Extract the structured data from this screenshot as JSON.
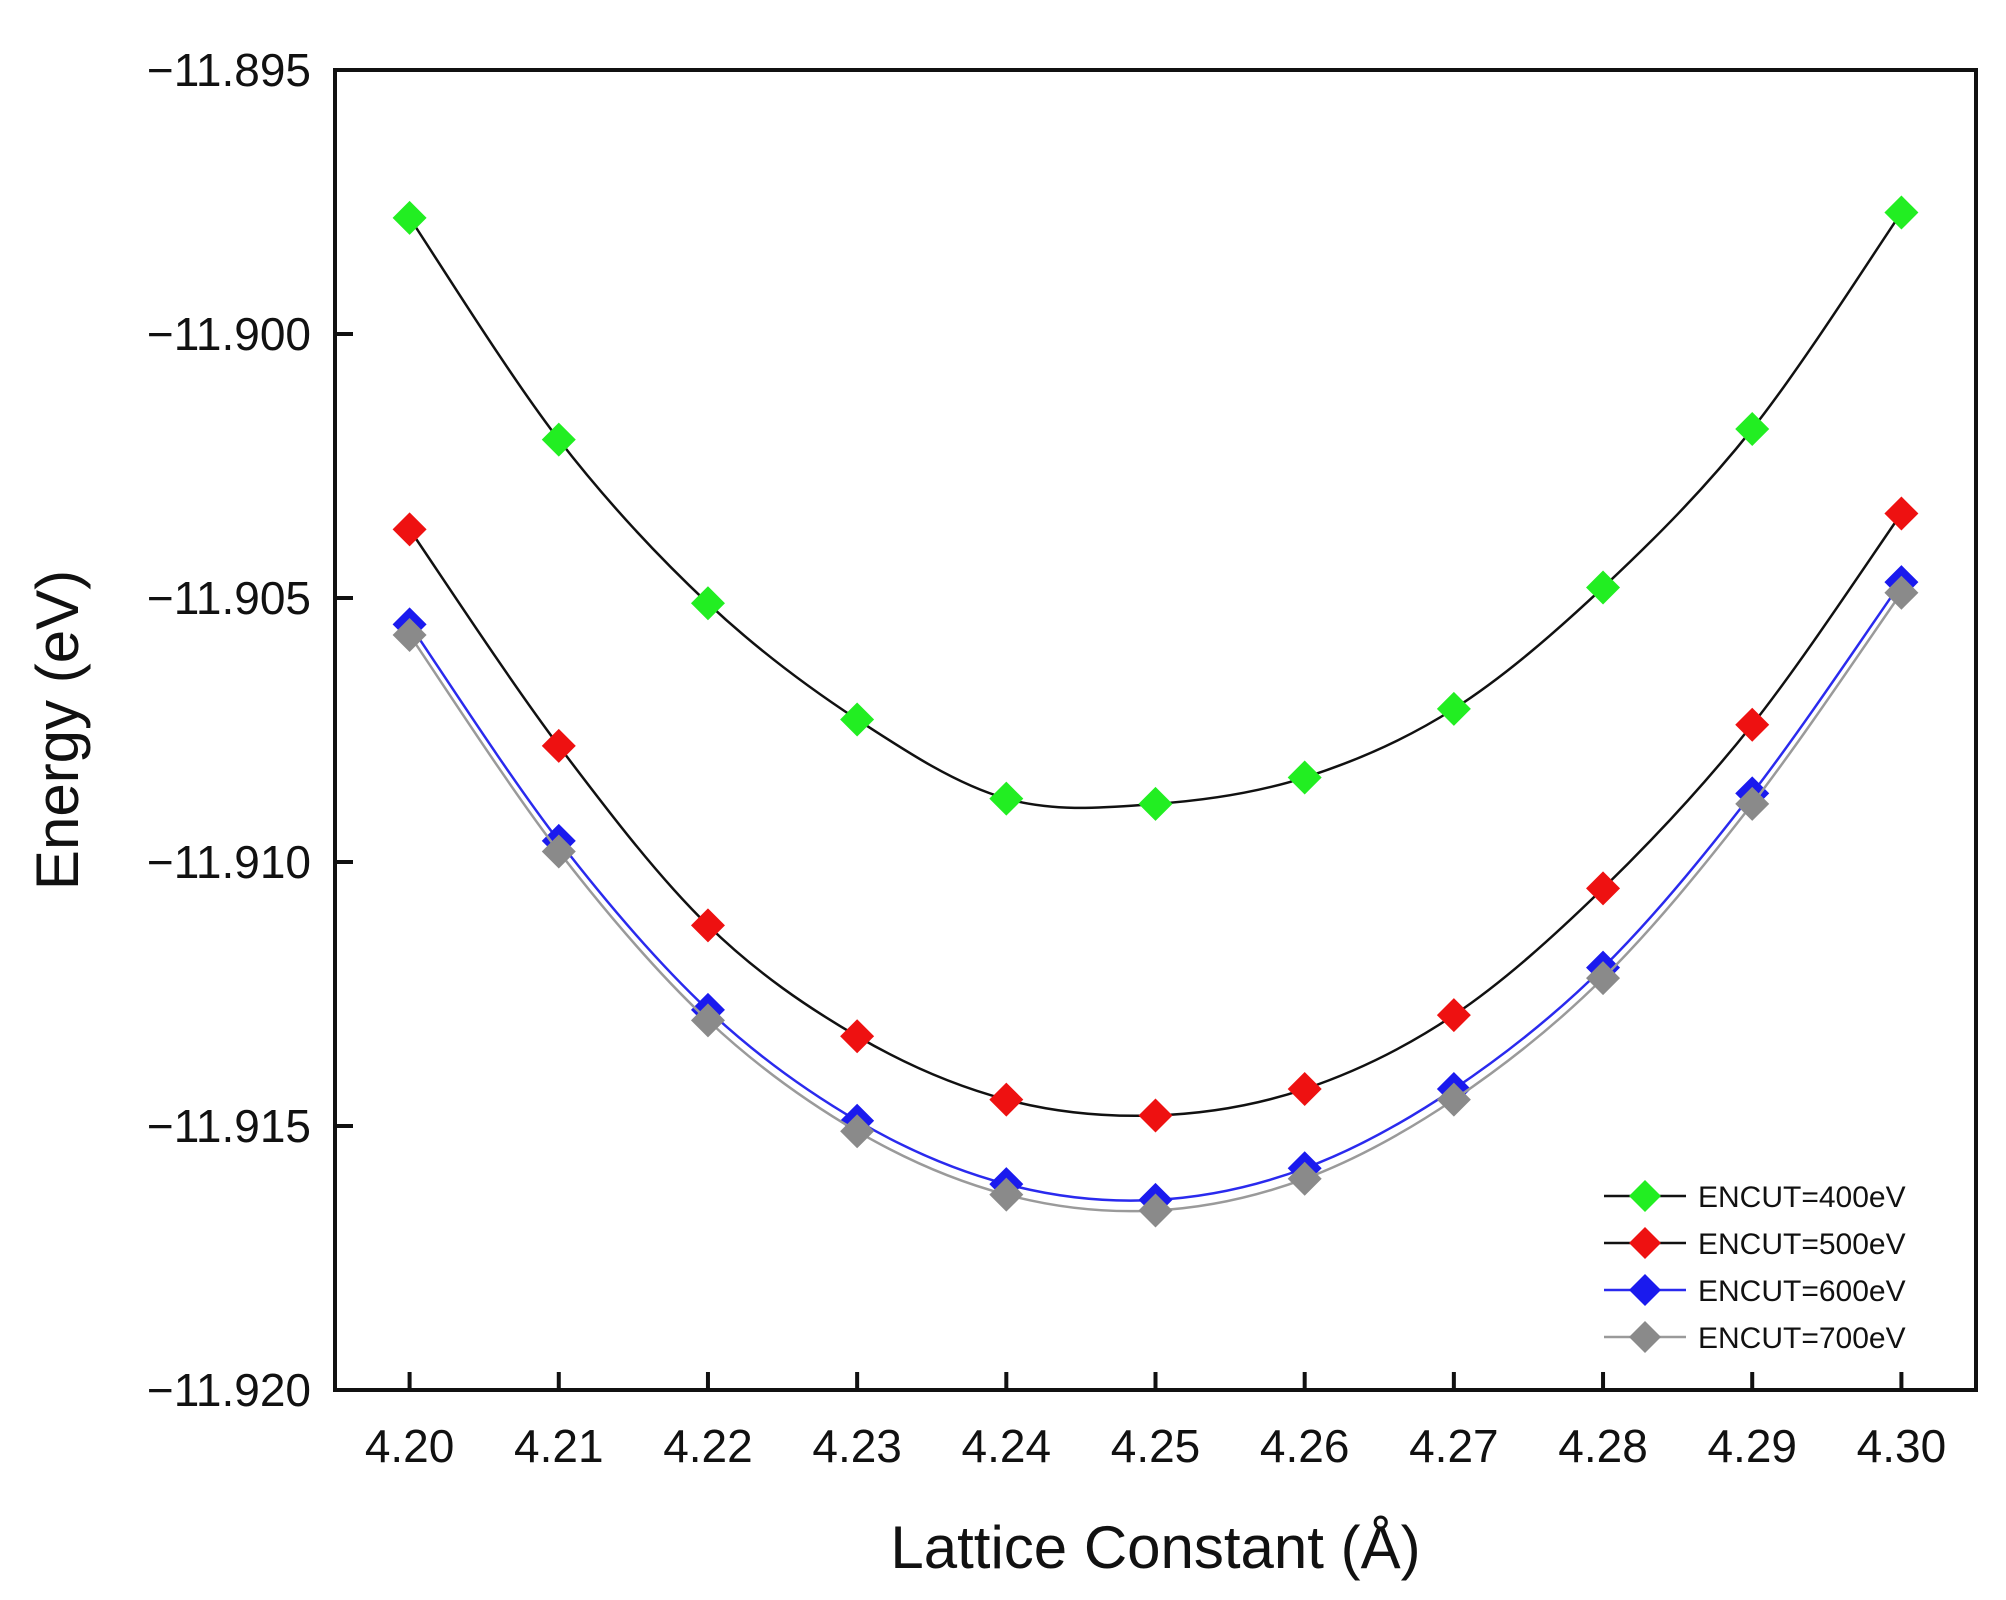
{
  "chart_data": {
    "type": "line",
    "title": "",
    "xlabel": "Lattice Constant (Å)",
    "ylabel": "Energy (eV)",
    "x": [
      4.2,
      4.21,
      4.22,
      4.23,
      4.24,
      4.25,
      4.26,
      4.27,
      4.28,
      4.29,
      4.3
    ],
    "xticks": [
      "4.20",
      "4.21",
      "4.22",
      "4.23",
      "4.24",
      "4.25",
      "4.26",
      "4.27",
      "4.28",
      "4.29",
      "4.30"
    ],
    "yticks": [
      "−11.920",
      "−11.915",
      "−11.910",
      "−11.905",
      "−11.900",
      "−11.895"
    ],
    "ytick_values": [
      -11.92,
      -11.915,
      -11.91,
      -11.905,
      -11.9,
      -11.895
    ],
    "xlim": [
      4.195,
      4.305
    ],
    "ylim": [
      -11.92,
      -11.895
    ],
    "grid": false,
    "legend_position": "bottom-right",
    "series": [
      {
        "name": "ENCUT=400eV",
        "marker_color": "#22ee22",
        "line_color": "#111111",
        "values": [
          -11.8978,
          -11.902,
          -11.9051,
          -11.9073,
          -11.9088,
          -11.9089,
          -11.9084,
          -11.9071,
          -11.9048,
          -11.9018,
          -11.8977
        ]
      },
      {
        "name": "ENCUT=500eV",
        "marker_color": "#ee1111",
        "line_color": "#111111",
        "values": [
          -11.9037,
          -11.9078,
          -11.9112,
          -11.9133,
          -11.9145,
          -11.9148,
          -11.9143,
          -11.9129,
          -11.9105,
          -11.9074,
          -11.9034
        ]
      },
      {
        "name": "ENCUT=600eV",
        "marker_color": "#1a1aee",
        "line_color": "#2a2aee",
        "values": [
          -11.9055,
          -11.9096,
          -11.9128,
          -11.9149,
          -11.9161,
          -11.9164,
          -11.9158,
          -11.9143,
          -11.912,
          -11.9087,
          -11.9047
        ]
      },
      {
        "name": "ENCUT=700eV",
        "marker_color": "#8a8a8a",
        "line_color": "#9a9a9a",
        "values": [
          -11.9057,
          -11.9098,
          -11.913,
          -11.9151,
          -11.9163,
          -11.9166,
          -11.916,
          -11.9145,
          -11.9122,
          -11.9089,
          -11.9049
        ]
      }
    ]
  }
}
